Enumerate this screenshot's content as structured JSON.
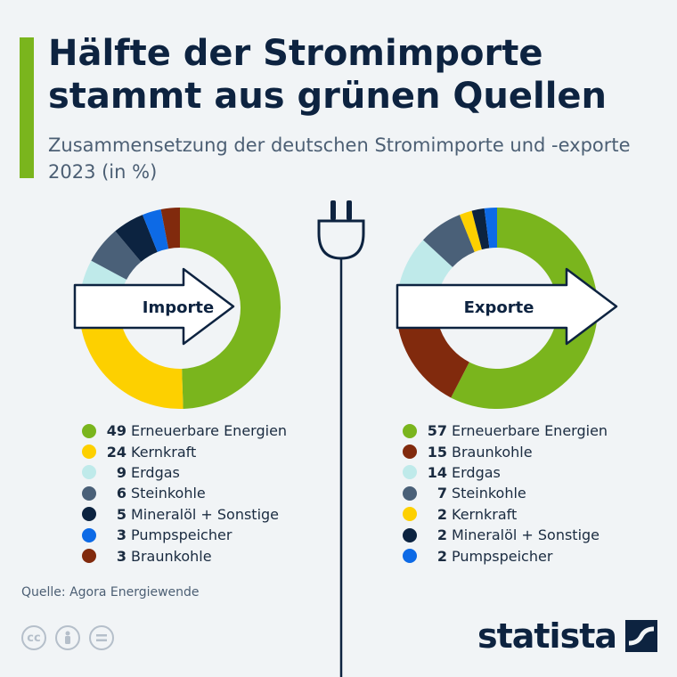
{
  "title": "Hälfte der Stromimporte stammt aus grünen Quellen",
  "subtitle": "Zusammensetzung der deutschen Stromimporte und -exporte 2023 (in %)",
  "source": "Quelle: Agora Energiewende",
  "logo": {
    "text": "statista"
  },
  "icons": [
    "cc-icon",
    "person-icon",
    "equals-icon",
    "plug-icon",
    "arrow-right-icon",
    "statista-logo-icon"
  ],
  "colors": {
    "accent": "#7ab51d",
    "Erneuerbare Energien": "#7ab51d",
    "Kernkraft": "#fdd000",
    "Erdgas": "#bfeaea",
    "Steinkohle": "#4a6078",
    "Mineralöl + Sonstige": "#0c2340",
    "Pumpspeicher": "#0d6ae6",
    "Braunkohle": "#812a0d"
  },
  "chart_data": [
    {
      "type": "pie",
      "title": "Importe",
      "categories": [
        "Erneuerbare Energien",
        "Kernkraft",
        "Erdgas",
        "Steinkohle",
        "Mineralöl + Sonstige",
        "Pumpspeicher",
        "Braunkohle"
      ],
      "values": [
        49,
        24,
        9,
        6,
        5,
        3,
        3
      ]
    },
    {
      "type": "pie",
      "title": "Exporte",
      "categories": [
        "Erneuerbare Energien",
        "Braunkohle",
        "Erdgas",
        "Steinkohle",
        "Kernkraft",
        "Mineralöl + Sonstige",
        "Pumpspeicher"
      ],
      "values": [
        57,
        15,
        14,
        7,
        2,
        2,
        2
      ]
    }
  ]
}
